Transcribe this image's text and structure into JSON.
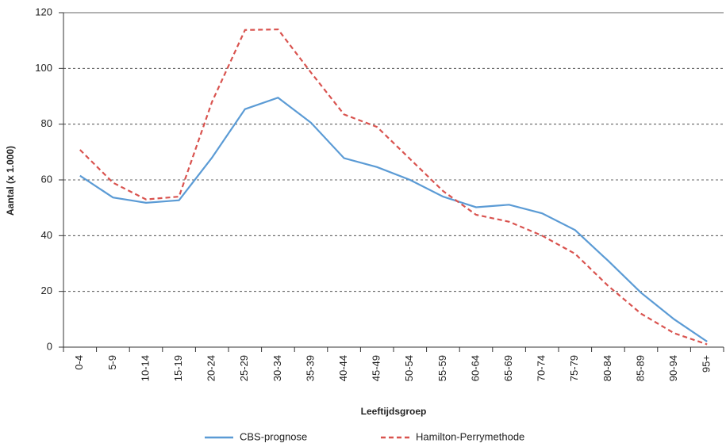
{
  "chart_data": {
    "type": "line",
    "x_label": "Leeftijdsgroep",
    "y_label": "Aantal (x 1.000)",
    "categories": [
      "0-4",
      "5-9",
      "10-14",
      "15-19",
      "20-24",
      "25-29",
      "30-34",
      "35-39",
      "40-44",
      "45-49",
      "50-54",
      "55-59",
      "60-64",
      "65-69",
      "70-74",
      "75-79",
      "80-84",
      "85-89",
      "90-94",
      "95+"
    ],
    "series": [
      {
        "name": "CBS-prognose",
        "color": "#5b9bd5",
        "dash": false,
        "values": [
          61.5,
          53.7,
          51.8,
          52.7,
          68,
          85.4,
          89.5,
          80.5,
          67.8,
          64.6,
          60,
          54,
          50.2,
          51.1,
          48,
          42,
          31,
          19.5,
          10,
          2
        ]
      },
      {
        "name": "Hamilton-Perrymethode",
        "color": "#d9534f",
        "dash": true,
        "values": [
          70.8,
          59,
          53,
          54,
          88,
          113.8,
          114,
          98.5,
          83.5,
          79,
          67.5,
          56,
          47.5,
          45,
          40,
          33.5,
          22,
          12,
          5,
          1
        ]
      }
    ],
    "ylim": [
      0,
      120
    ],
    "yticks": [
      0,
      20,
      40,
      60,
      80,
      100,
      120
    ],
    "grid": true,
    "legend": "bottom"
  }
}
